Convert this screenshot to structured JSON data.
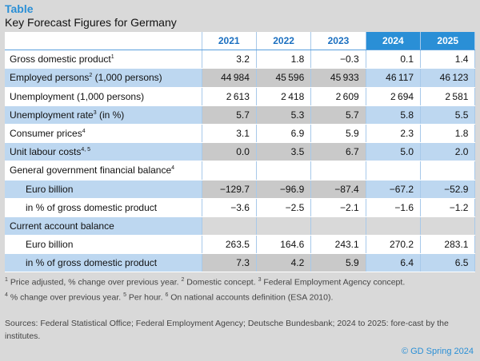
{
  "header": {
    "kicker": "Table",
    "title": "Key Forecast Figures for Germany"
  },
  "table": {
    "years": [
      "2021",
      "2022",
      "2023",
      "2024",
      "2025"
    ],
    "forecast_years": [
      "2024",
      "2025"
    ],
    "rows": [
      {
        "label": "Gross domestic product",
        "sup": "1",
        "values": [
          "3.2",
          "1.8",
          "−0.3",
          "0.1",
          "1.4"
        ]
      },
      {
        "label": "Employed persons",
        "sup": "2",
        "suffix": " (1,000 persons)",
        "values": [
          "44 984",
          "45 596",
          "45 933",
          "46 117",
          "46 123"
        ]
      },
      {
        "label": "Unemployment (1,000 persons)",
        "sup": "",
        "values": [
          "2 613",
          "2 418",
          "2 609",
          "2 694",
          "2 581"
        ]
      },
      {
        "label": "Unemployment rate",
        "sup": "3",
        "suffix": " (in %)",
        "values": [
          "5.7",
          "5.3",
          "5.7",
          "5.8",
          "5.5"
        ]
      },
      {
        "label": "Consumer prices",
        "sup": "4",
        "values": [
          "3.1",
          "6.9",
          "5.9",
          "2.3",
          "1.8"
        ]
      },
      {
        "label": "Unit labour costs",
        "sup": "4, 5",
        "values": [
          "0.0",
          "3.5",
          "6.7",
          "5.0",
          "2.0"
        ]
      },
      {
        "label": "General government financial balance",
        "sup": "4",
        "values": [
          "",
          "",
          "",
          "",
          ""
        ]
      },
      {
        "label": "Euro billion",
        "sup": "",
        "values": [
          "−129.7",
          "−96.9",
          "−87.4",
          "−67.2",
          "−52.9"
        ]
      },
      {
        "label": "in % of gross domestic product",
        "sup": "",
        "values": [
          "−3.6",
          "−2.5",
          "−2.1",
          "−1.6",
          "−1.2"
        ]
      },
      {
        "label": "Current account balance",
        "sup": "",
        "values": [
          "",
          "",
          "",
          "",
          ""
        ]
      },
      {
        "label": "Euro billion",
        "sup": "",
        "values": [
          "263.5",
          "164.6",
          "243.1",
          "270.2",
          "283.1"
        ]
      },
      {
        "label": "in % of gross domestic product",
        "sup": "",
        "values": [
          "7.3",
          "4.2",
          "5.9",
          "6.4",
          "6.5"
        ]
      }
    ]
  },
  "footnotes": {
    "line1": [
      {
        "sup": "1",
        "text": " Price adjusted, % change over previous year. "
      },
      {
        "sup": "2",
        "text": " Domestic concept. "
      },
      {
        "sup": "3",
        "text": " Federal Employment Agency concept."
      }
    ],
    "line2": [
      {
        "sup": "4",
        "text": " % change over previous year. "
      },
      {
        "sup": "5",
        "text": " Per hour. "
      },
      {
        "sup": "6",
        "text": " On national accounts definition (ESA 2010)."
      }
    ]
  },
  "sources": "Sources: Federal Statistical Office; Federal Employment Agency; Deutsche Bundesbank; 2024 to 2025: fore-cast by the institutes.",
  "copyright": "© GD Spring 2024",
  "colors": {
    "accent": "#2a8fd6",
    "row_blue": "#bdd7f0",
    "row_grey": "#c9c9c9",
    "background": "#d9d9d9"
  }
}
